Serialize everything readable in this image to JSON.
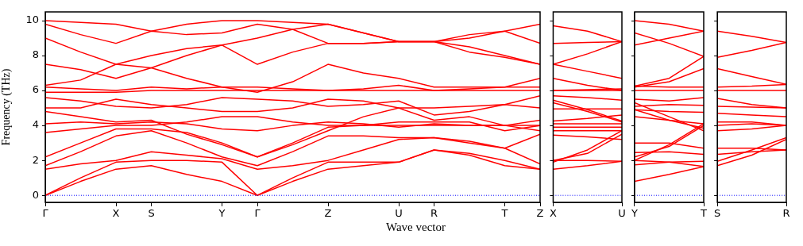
{
  "chart_data": [
    {
      "type": "line",
      "xlabel": "Wave vector",
      "ylabel": "Frequency (THz)",
      "legend": false,
      "marker": "none",
      "ylim": [
        -0.4,
        10.5
      ],
      "yticks": [
        0,
        2,
        4,
        6,
        8,
        10
      ],
      "categories": [
        "Γ",
        null,
        "X",
        "S",
        null,
        "Y",
        "Γ",
        null,
        "Z",
        null,
        "U",
        "R",
        null,
        "T",
        "Z"
      ],
      "ref_lines": [
        {
          "axis": "y",
          "value": 0,
          "color": "#0000ff",
          "line_style": "dotted"
        }
      ],
      "series": [
        {
          "color": "#ff0000",
          "values": [
            0,
            0.8,
            1.5,
            1.7,
            1.2,
            0.8,
            0,
            0.8,
            1.5,
            1.7,
            1.9,
            2.6,
            2.3,
            1.7,
            1.5
          ]
        },
        {
          "color": "#ff0000",
          "values": [
            0,
            1.0,
            1.9,
            2.0,
            2.0,
            1.9,
            0,
            1.0,
            1.9,
            1.9,
            1.9,
            2.6,
            2.4,
            2.0,
            1.5
          ]
        },
        {
          "color": "#ff0000",
          "values": [
            1.5,
            1.8,
            2.0,
            2.5,
            2.3,
            2.1,
            1.5,
            1.7,
            2.0,
            2.6,
            3.2,
            3.3,
            3.0,
            2.7,
            1.8
          ]
        },
        {
          "color": "#ff0000",
          "values": [
            1.7,
            2.5,
            3.4,
            3.7,
            3.0,
            2.2,
            1.7,
            2.5,
            3.4,
            3.4,
            3.3,
            3.3,
            3.1,
            2.7,
            3.5
          ]
        },
        {
          "color": "#ff0000",
          "values": [
            2.2,
            3.0,
            3.8,
            3.8,
            3.6,
            3.0,
            2.2,
            3.0,
            3.9,
            4.0,
            4.2,
            4.2,
            4.2,
            3.7,
            4.0
          ]
        },
        {
          "color": "#ff0000",
          "values": [
            3.6,
            3.8,
            4.0,
            4.0,
            4.2,
            4.5,
            4.5,
            4.2,
            4.0,
            4.0,
            4.0,
            4.0,
            4.0,
            4.0,
            4.0
          ]
        },
        {
          "color": "#ff0000",
          "values": [
            4.1,
            4.2,
            4.1,
            4.2,
            4.1,
            3.8,
            3.7,
            4.0,
            4.2,
            4.1,
            3.9,
            4.1,
            4.0,
            4.0,
            4.3
          ]
        },
        {
          "color": "#ff0000",
          "values": [
            4.8,
            4.5,
            4.2,
            4.3,
            3.5,
            2.9,
            2.2,
            2.9,
            3.7,
            4.5,
            5.0,
            5.0,
            5.1,
            5.2,
            5.0
          ]
        },
        {
          "color": "#ff0000",
          "values": [
            5.0,
            5.0,
            5.5,
            5.2,
            5.0,
            4.8,
            4.8,
            5.0,
            5.5,
            5.4,
            5.0,
            4.3,
            4.5,
            4.0,
            3.7
          ]
        },
        {
          "color": "#ff0000",
          "values": [
            5.6,
            5.4,
            5.1,
            5.0,
            5.2,
            5.6,
            5.5,
            5.4,
            5.1,
            5.2,
            5.4,
            4.6,
            4.8,
            5.2,
            5.7
          ]
        },
        {
          "color": "#ff0000",
          "values": [
            5.9,
            5.9,
            5.9,
            6.0,
            6.0,
            6.0,
            6.0,
            6.0,
            6.0,
            6.0,
            6.0,
            6.0,
            6.0,
            6.0,
            6.0
          ]
        },
        {
          "color": "#ff0000",
          "values": [
            6.2,
            6.1,
            6.0,
            6.2,
            6.1,
            6.2,
            6.2,
            6.1,
            6.0,
            6.1,
            6.3,
            6.0,
            6.1,
            6.2,
            6.2
          ]
        },
        {
          "color": "#ff0000",
          "values": [
            6.3,
            6.6,
            7.5,
            7.3,
            6.7,
            6.2,
            5.9,
            6.5,
            7.5,
            7.0,
            6.7,
            6.2,
            6.2,
            6.2,
            6.7
          ]
        },
        {
          "color": "#ff0000",
          "values": [
            7.5,
            7.2,
            6.7,
            7.3,
            8.0,
            8.6,
            7.5,
            8.2,
            8.7,
            8.7,
            8.8,
            8.8,
            8.5,
            8.0,
            7.5
          ]
        },
        {
          "color": "#ff0000",
          "values": [
            9.0,
            8.2,
            7.5,
            8.0,
            8.4,
            8.6,
            9.0,
            9.5,
            9.8,
            9.3,
            8.8,
            8.8,
            9.2,
            9.4,
            9.8
          ]
        },
        {
          "color": "#ff0000",
          "values": [
            9.8,
            9.2,
            8.7,
            9.4,
            9.2,
            9.3,
            9.8,
            9.5,
            8.7,
            8.7,
            8.8,
            8.8,
            9.0,
            9.4,
            8.7
          ]
        },
        {
          "color": "#ff0000",
          "values": [
            10.0,
            9.9,
            9.8,
            9.4,
            9.8,
            10.0,
            10.0,
            9.9,
            9.8,
            9.3,
            8.8,
            8.8,
            8.2,
            7.9,
            7.5
          ]
        }
      ]
    },
    {
      "type": "line",
      "legend": false,
      "marker": "none",
      "tick_labels": "x",
      "ylim": [
        -0.4,
        10.5
      ],
      "yticks": [
        0,
        2,
        4,
        6,
        8,
        10
      ],
      "categories": [
        "X",
        null,
        "U"
      ],
      "ref_lines": [
        {
          "axis": "y",
          "value": 0,
          "color": "#0000ff",
          "line_style": "dotted"
        }
      ],
      "series": [
        {
          "color": "#ff0000",
          "values": [
            9.7,
            9.4,
            8.8
          ]
        },
        {
          "color": "#ff0000",
          "values": [
            8.7,
            8.75,
            8.8
          ]
        },
        {
          "color": "#ff0000",
          "values": [
            7.5,
            8.1,
            8.8
          ]
        },
        {
          "color": "#ff0000",
          "values": [
            7.5,
            7.1,
            6.7
          ]
        },
        {
          "color": "#ff0000",
          "values": [
            6.7,
            6.3,
            6.0
          ]
        },
        {
          "color": "#ff0000",
          "values": [
            6.0,
            6.05,
            6.1
          ]
        },
        {
          "color": "#ff0000",
          "values": [
            6.0,
            6.0,
            6.0
          ]
        },
        {
          "color": "#ff0000",
          "values": [
            5.7,
            5.6,
            5.45
          ]
        },
        {
          "color": "#ff0000",
          "values": [
            5.45,
            4.9,
            4.25
          ]
        },
        {
          "color": "#ff0000",
          "values": [
            5.3,
            4.8,
            4.2
          ]
        },
        {
          "color": "#ff0000",
          "values": [
            4.95,
            4.95,
            4.95
          ]
        },
        {
          "color": "#ff0000",
          "values": [
            4.25,
            4.4,
            4.6
          ]
        },
        {
          "color": "#ff0000",
          "values": [
            4.1,
            4.1,
            4.1
          ]
        },
        {
          "color": "#ff0000",
          "values": [
            3.9,
            3.9,
            3.9
          ]
        },
        {
          "color": "#ff0000",
          "values": [
            3.7,
            3.7,
            3.7
          ]
        },
        {
          "color": "#ff0000",
          "values": [
            3.45,
            3.35,
            3.2
          ]
        },
        {
          "color": "#ff0000",
          "values": [
            2.0,
            2.4,
            3.5
          ]
        },
        {
          "color": "#ff0000",
          "values": [
            1.9,
            2.6,
            3.7
          ]
        },
        {
          "color": "#ff0000",
          "values": [
            2.0,
            2.0,
            1.95
          ]
        },
        {
          "color": "#ff0000",
          "values": [
            1.5,
            1.7,
            1.95
          ]
        }
      ]
    },
    {
      "type": "line",
      "legend": false,
      "marker": "none",
      "tick_labels": "x",
      "ylim": [
        -0.4,
        10.5
      ],
      "yticks": [
        0,
        2,
        4,
        6,
        8,
        10
      ],
      "categories": [
        "Y",
        null,
        "T"
      ],
      "ref_lines": [
        {
          "axis": "y",
          "value": 0,
          "color": "#0000ff",
          "line_style": "dotted"
        }
      ],
      "series": [
        {
          "color": "#ff0000",
          "values": [
            10.0,
            9.8,
            9.4
          ]
        },
        {
          "color": "#ff0000",
          "values": [
            9.3,
            8.7,
            7.95
          ]
        },
        {
          "color": "#ff0000",
          "values": [
            8.6,
            9.0,
            9.4
          ]
        },
        {
          "color": "#ff0000",
          "values": [
            6.25,
            6.7,
            7.95
          ]
        },
        {
          "color": "#ff0000",
          "values": [
            6.2,
            6.5,
            7.25
          ]
        },
        {
          "color": "#ff0000",
          "values": [
            6.0,
            6.0,
            6.0
          ]
        },
        {
          "color": "#ff0000",
          "values": [
            6.25,
            6.2,
            6.2
          ]
        },
        {
          "color": "#ff0000",
          "values": [
            5.5,
            5.4,
            5.6
          ]
        },
        {
          "color": "#ff0000",
          "values": [
            5.1,
            5.2,
            5.15
          ]
        },
        {
          "color": "#ff0000",
          "values": [
            4.9,
            4.8,
            4.75
          ]
        },
        {
          "color": "#ff0000",
          "values": [
            4.9,
            4.3,
            4.1
          ]
        },
        {
          "color": "#ff0000",
          "values": [
            4.5,
            4.3,
            3.85
          ]
        },
        {
          "color": "#ff0000",
          "values": [
            5.3,
            4.5,
            3.7
          ]
        },
        {
          "color": "#ff0000",
          "values": [
            3.0,
            3.0,
            2.7
          ]
        },
        {
          "color": "#ff0000",
          "values": [
            2.45,
            2.5,
            2.35
          ]
        },
        {
          "color": "#ff0000",
          "values": [
            2.2,
            2.8,
            4.0
          ]
        },
        {
          "color": "#ff0000",
          "values": [
            2.0,
            2.9,
            4.1
          ]
        },
        {
          "color": "#ff0000",
          "values": [
            1.75,
            1.9,
            1.95
          ]
        },
        {
          "color": "#ff0000",
          "values": [
            2.0,
            1.9,
            1.65
          ]
        },
        {
          "color": "#ff0000",
          "values": [
            0.8,
            1.2,
            1.65
          ]
        }
      ]
    },
    {
      "type": "line",
      "legend": false,
      "marker": "none",
      "tick_labels": "x",
      "ylim": [
        -0.4,
        10.5
      ],
      "yticks": [
        0,
        2,
        4,
        6,
        8,
        10
      ],
      "categories": [
        "S",
        null,
        "R"
      ],
      "ref_lines": [
        {
          "axis": "y",
          "value": 0,
          "color": "#0000ff",
          "line_style": "dotted"
        }
      ],
      "series": [
        {
          "color": "#ff0000",
          "values": [
            9.4,
            9.1,
            8.75
          ]
        },
        {
          "color": "#ff0000",
          "values": [
            7.9,
            8.3,
            8.75
          ]
        },
        {
          "color": "#ff0000",
          "values": [
            7.25,
            6.8,
            6.35
          ]
        },
        {
          "color": "#ff0000",
          "values": [
            6.2,
            6.25,
            6.35
          ]
        },
        {
          "color": "#ff0000",
          "values": [
            6.0,
            6.0,
            6.0
          ]
        },
        {
          "color": "#ff0000",
          "values": [
            5.55,
            5.2,
            5.0
          ]
        },
        {
          "color": "#ff0000",
          "values": [
            5.1,
            5.05,
            5.0
          ]
        },
        {
          "color": "#ff0000",
          "values": [
            4.7,
            4.6,
            4.5
          ]
        },
        {
          "color": "#ff0000",
          "values": [
            4.2,
            4.2,
            4.0
          ]
        },
        {
          "color": "#ff0000",
          "values": [
            4.0,
            4.1,
            4.0
          ]
        },
        {
          "color": "#ff0000",
          "values": [
            3.7,
            3.8,
            4.0
          ]
        },
        {
          "color": "#ff0000",
          "values": [
            2.7,
            2.7,
            2.6
          ]
        },
        {
          "color": "#ff0000",
          "values": [
            2.35,
            2.5,
            2.6
          ]
        },
        {
          "color": "#ff0000",
          "values": [
            1.95,
            2.6,
            3.3
          ]
        },
        {
          "color": "#ff0000",
          "values": [
            1.7,
            2.3,
            3.2
          ]
        }
      ]
    }
  ]
}
